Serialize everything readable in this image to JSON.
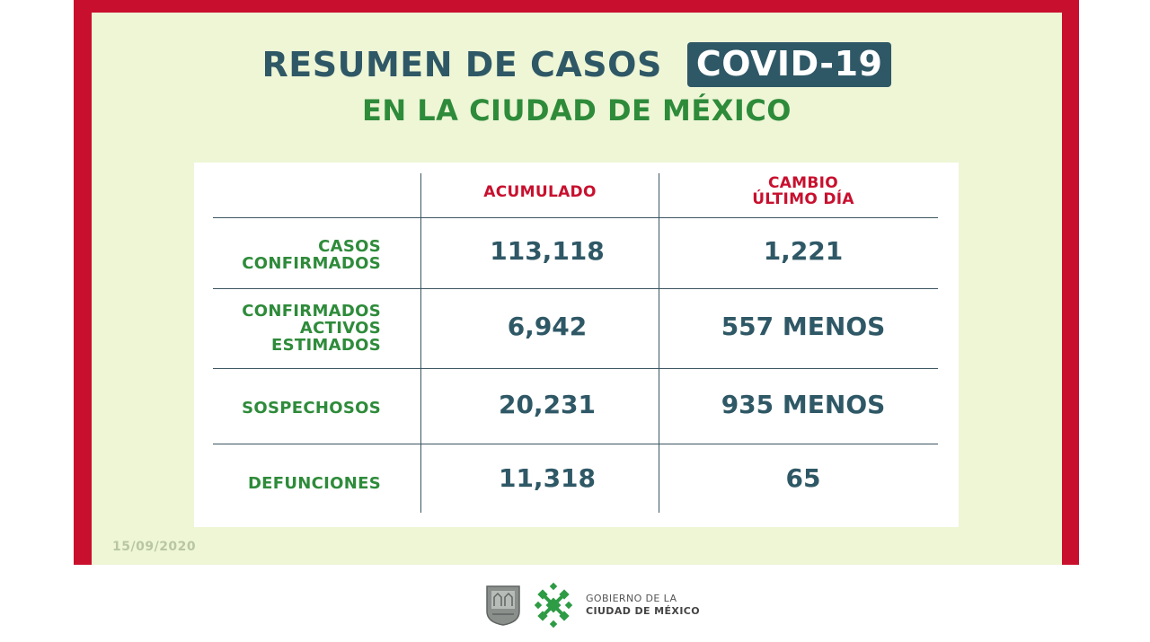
{
  "title": {
    "main": "RESUMEN DE CASOS",
    "badge": "COVID-19",
    "subtitle": "EN LA CIUDAD DE MÉXICO"
  },
  "table": {
    "headers": {
      "acumulado": "ACUMULADO",
      "cambio_line1": "CAMBIO",
      "cambio_line2": "ÚLTIMO DÍA"
    },
    "rows": [
      {
        "label_lines": [
          "CASOS",
          "CONFIRMADOS"
        ],
        "acumulado": "113,118",
        "cambio": "1,221"
      },
      {
        "label_lines": [
          "CONFIRMADOS",
          "ACTIVOS",
          "ESTIMADOS"
        ],
        "acumulado": "6,942",
        "cambio": "557 MENOS"
      },
      {
        "label_lines": [
          "SOSPECHOSOS"
        ],
        "acumulado": "20,231",
        "cambio": "935 MENOS"
      },
      {
        "label_lines": [
          "DEFUNCIONES"
        ],
        "acumulado": "11,318",
        "cambio": "65"
      }
    ]
  },
  "date": "15/09/2020",
  "footer": {
    "line1": "GOBIERNO DE LA",
    "line2": "CIUDAD DE MÉXICO",
    "icons": [
      "coat-of-arms-icon",
      "cdmx-logo-icon"
    ]
  },
  "colors": {
    "frame": "#c8102e",
    "panel": "#eef6d6",
    "title": "#2f5866",
    "green": "#2e8b3a",
    "red": "#c8102e"
  }
}
